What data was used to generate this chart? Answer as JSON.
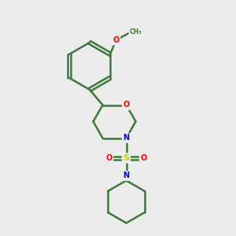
{
  "background_color": "#ececec",
  "bond_color": "#3a7a3a",
  "bond_width": 1.8,
  "atom_colors": {
    "O": "#ff0000",
    "N": "#0000ee",
    "S": "#cccc00",
    "C": "#3a7a3a"
  },
  "figsize": [
    3.0,
    3.0
  ],
  "dpi": 100,
  "xlim": [
    0,
    10
  ],
  "ylim": [
    0,
    10
  ]
}
